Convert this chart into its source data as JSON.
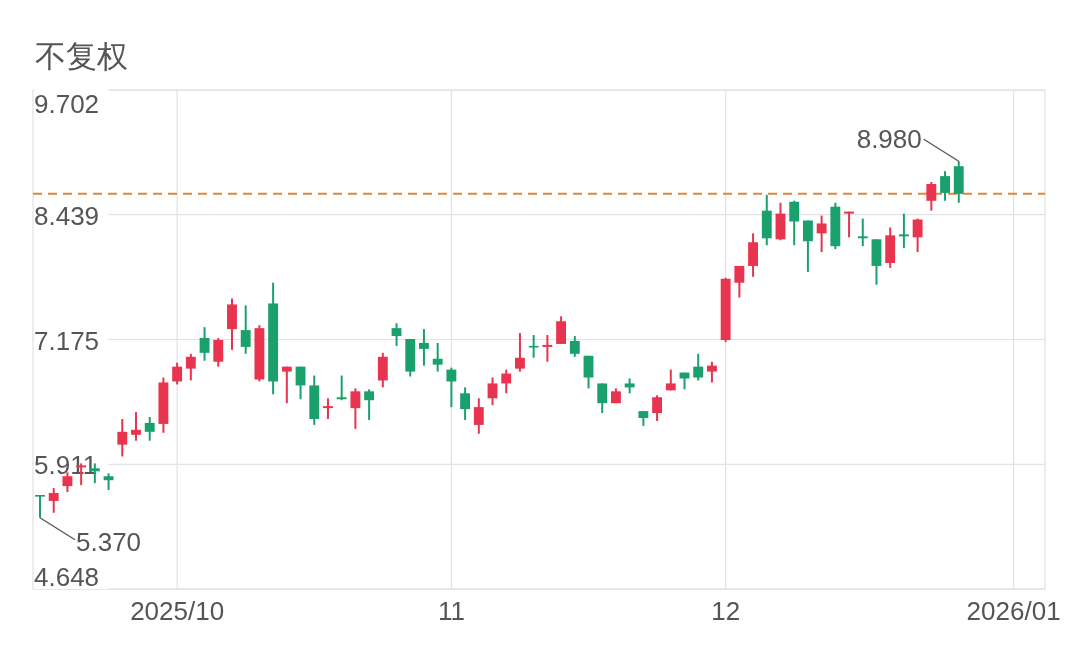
{
  "chart_data": {
    "type": "candlestick",
    "title": "不复权",
    "categories": [
      null,
      null,
      null,
      null,
      null,
      null,
      null,
      null,
      null,
      null,
      "2025/10",
      null,
      null,
      null,
      null,
      null,
      null,
      null,
      null,
      null,
      null,
      null,
      null,
      null,
      null,
      null,
      null,
      null,
      null,
      null,
      "11",
      null,
      null,
      null,
      null,
      null,
      null,
      null,
      null,
      null,
      null,
      null,
      null,
      null,
      null,
      null,
      null,
      null,
      null,
      null,
      "12",
      null,
      null,
      null,
      null,
      null,
      null,
      null,
      null,
      null,
      null,
      null,
      null,
      null,
      null,
      null,
      null,
      null,
      null,
      null,
      null,
      "2026/01"
    ],
    "ohlc": [
      [
        5.6,
        5.6,
        5.37,
        5.59
      ],
      [
        5.54,
        5.67,
        5.42,
        5.62
      ],
      [
        5.69,
        5.83,
        5.63,
        5.79
      ],
      [
        5.88,
        5.92,
        5.7,
        5.9
      ],
      [
        5.87,
        5.92,
        5.72,
        5.84
      ],
      [
        5.79,
        5.82,
        5.65,
        5.75
      ],
      [
        6.11,
        6.37,
        5.99,
        6.24
      ],
      [
        6.21,
        6.44,
        6.15,
        6.26
      ],
      [
        6.33,
        6.39,
        6.15,
        6.24
      ],
      [
        6.32,
        6.79,
        6.23,
        6.74
      ],
      [
        6.75,
        6.94,
        6.72,
        6.9
      ],
      [
        6.88,
        7.03,
        6.76,
        7.0
      ],
      [
        7.19,
        7.3,
        6.96,
        7.04
      ],
      [
        6.95,
        7.19,
        6.9,
        7.17
      ],
      [
        7.28,
        7.59,
        7.07,
        7.53
      ],
      [
        7.27,
        7.52,
        7.03,
        7.1
      ],
      [
        6.77,
        7.32,
        6.75,
        7.29
      ],
      [
        7.54,
        7.75,
        6.62,
        6.75
      ],
      [
        6.85,
        6.9,
        6.53,
        6.9
      ],
      [
        6.9,
        6.9,
        6.57,
        6.71
      ],
      [
        6.71,
        6.81,
        6.31,
        6.37
      ],
      [
        6.48,
        6.58,
        6.37,
        6.5
      ],
      [
        6.59,
        6.81,
        6.56,
        6.57
      ],
      [
        6.48,
        6.68,
        6.27,
        6.65
      ],
      [
        6.65,
        6.67,
        6.36,
        6.56
      ],
      [
        6.76,
        7.04,
        6.69,
        7.0
      ],
      [
        7.29,
        7.34,
        7.11,
        7.21
      ],
      [
        7.18,
        7.18,
        6.8,
        6.85
      ],
      [
        7.14,
        7.28,
        6.91,
        7.08
      ],
      [
        6.98,
        7.14,
        6.85,
        6.92
      ],
      [
        6.87,
        6.89,
        6.49,
        6.75
      ],
      [
        6.63,
        6.69,
        6.36,
        6.47
      ],
      [
        6.31,
        6.58,
        6.22,
        6.49
      ],
      [
        6.58,
        6.79,
        6.51,
        6.73
      ],
      [
        6.73,
        6.87,
        6.63,
        6.83
      ],
      [
        6.88,
        7.24,
        6.85,
        6.99
      ],
      [
        7.11,
        7.22,
        6.99,
        7.1
      ],
      [
        7.1,
        7.22,
        6.95,
        7.12
      ],
      [
        7.13,
        7.41,
        7.13,
        7.36
      ],
      [
        7.16,
        7.21,
        7.0,
        7.03
      ],
      [
        7.01,
        7.01,
        6.68,
        6.79
      ],
      [
        6.73,
        6.73,
        6.43,
        6.53
      ],
      [
        6.53,
        6.68,
        6.53,
        6.65
      ],
      [
        6.73,
        6.78,
        6.63,
        6.69
      ],
      [
        6.45,
        6.45,
        6.3,
        6.38
      ],
      [
        6.43,
        6.61,
        6.35,
        6.59
      ],
      [
        6.66,
        6.87,
        6.66,
        6.73
      ],
      [
        6.84,
        6.84,
        6.67,
        6.78
      ],
      [
        6.9,
        7.03,
        6.76,
        6.79
      ],
      [
        6.85,
        6.95,
        6.74,
        6.91
      ],
      [
        7.17,
        7.8,
        7.15,
        7.79
      ],
      [
        7.75,
        7.92,
        7.6,
        7.92
      ],
      [
        7.92,
        8.25,
        7.81,
        8.16
      ],
      [
        8.48,
        8.64,
        8.13,
        8.2
      ],
      [
        8.19,
        8.56,
        8.18,
        8.45
      ],
      [
        8.57,
        8.58,
        8.13,
        8.37
      ],
      [
        8.38,
        8.38,
        7.86,
        8.17
      ],
      [
        8.25,
        8.43,
        8.06,
        8.35
      ],
      [
        8.52,
        8.56,
        8.09,
        8.12
      ],
      [
        8.45,
        8.47,
        8.21,
        8.47
      ],
      [
        8.22,
        8.4,
        8.12,
        8.2
      ],
      [
        8.19,
        8.19,
        7.73,
        7.92
      ],
      [
        7.95,
        8.31,
        7.9,
        8.23
      ],
      [
        8.24,
        8.45,
        8.1,
        8.22
      ],
      [
        8.21,
        8.4,
        8.06,
        8.39
      ],
      [
        8.58,
        8.77,
        8.48,
        8.75
      ],
      [
        8.83,
        8.88,
        8.58,
        8.66
      ],
      [
        8.93,
        8.98,
        8.56,
        8.65
      ],
      null,
      null,
      null,
      null
    ],
    "colors": [
      "#1aa06d",
      "#e8344e",
      "#e8344e",
      "#e8344e",
      "#1aa06d",
      "#1aa06d",
      "#e8344e",
      "#e8344e",
      "#1aa06d",
      "#e8344e",
      "#e8344e",
      "#e8344e",
      "#1aa06d",
      "#e8344e",
      "#e8344e",
      "#1aa06d",
      "#e8344e",
      "#1aa06d",
      "#e8344e",
      "#1aa06d",
      "#1aa06d",
      "#e8344e",
      "#1aa06d",
      "#e8344e",
      "#1aa06d",
      "#e8344e",
      "#1aa06d",
      "#1aa06d",
      "#1aa06d",
      "#1aa06d",
      "#1aa06d",
      "#1aa06d",
      "#e8344e",
      "#e8344e",
      "#e8344e",
      "#e8344e",
      "#1aa06d",
      "#e8344e",
      "#e8344e",
      "#1aa06d",
      "#1aa06d",
      "#1aa06d",
      "#e8344e",
      "#1aa06d",
      "#1aa06d",
      "#e8344e",
      "#e8344e",
      "#1aa06d",
      "#1aa06d",
      "#e8344e",
      "#e8344e",
      "#e8344e",
      "#e8344e",
      "#1aa06d",
      "#e8344e",
      "#1aa06d",
      "#1aa06d",
      "#e8344e",
      "#1aa06d",
      "#e8344e",
      "#1aa06d",
      "#1aa06d",
      "#e8344e",
      "#1aa06d",
      "#e8344e",
      "#e8344e",
      "#1aa06d",
      "#1aa06d",
      null,
      null,
      null,
      null
    ],
    "ylim": [
      4.648,
      9.702
    ],
    "yticks": [
      4.648,
      5.911,
      7.175,
      8.439,
      9.702
    ],
    "grid": true,
    "ref_lines": [
      {
        "axis": "y",
        "value": 8.65,
        "color": "#e0873a",
        "line_style": "dashed"
      }
    ],
    "annotations": [
      "5.370",
      "8.980"
    ]
  }
}
